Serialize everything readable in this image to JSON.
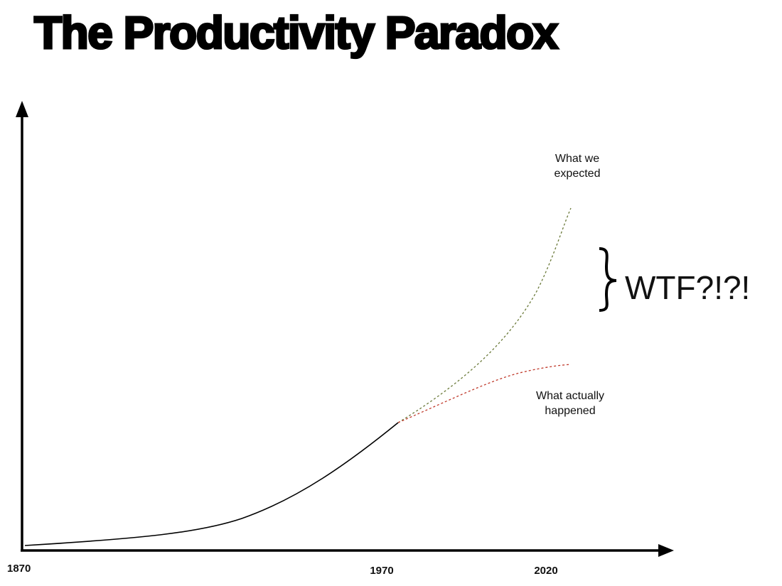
{
  "title": "The Productivity Paradox",
  "x_axis": {
    "labels": [
      "1870",
      "1970",
      "2020"
    ]
  },
  "annotations": {
    "expected": [
      "What we",
      "expected"
    ],
    "actual": [
      "What actually",
      "happened"
    ],
    "gap": "WTF?!?!"
  }
}
